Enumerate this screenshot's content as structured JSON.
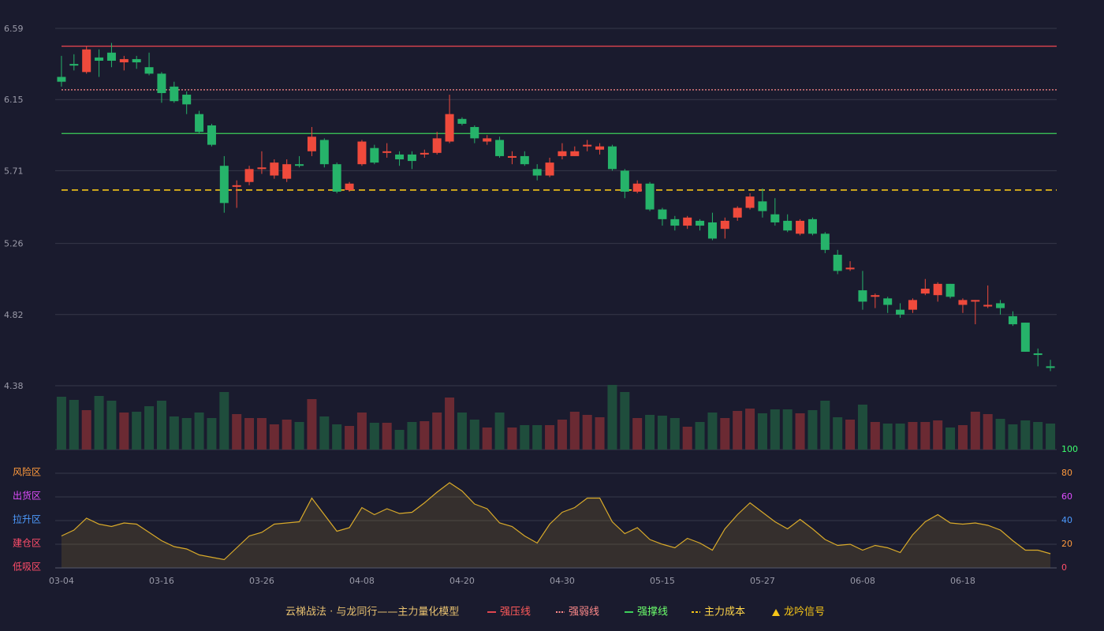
{
  "chart_data": {
    "type": "candlestick",
    "title": "云梯战法 · 与龙同行——主力量化模型",
    "categories": [
      "03-04",
      null,
      null,
      null,
      null,
      null,
      null,
      null,
      "03-16",
      null,
      null,
      null,
      null,
      null,
      null,
      null,
      "03-26",
      null,
      null,
      null,
      null,
      null,
      null,
      null,
      "04-08",
      null,
      null,
      null,
      null,
      null,
      null,
      null,
      "04-20",
      null,
      null,
      null,
      null,
      null,
      null,
      null,
      "04-30",
      null,
      null,
      null,
      null,
      null,
      null,
      null,
      "05-15",
      null,
      null,
      null,
      null,
      null,
      null,
      null,
      "05-27",
      null,
      null,
      null,
      null,
      null,
      null,
      null,
      "06-08",
      null,
      null,
      null,
      null,
      null,
      null,
      null,
      "06-18",
      null,
      null,
      null,
      null,
      null,
      null,
      null
    ],
    "open": [
      6.29,
      6.37,
      6.32,
      6.41,
      6.44,
      6.38,
      6.4,
      6.35,
      6.31,
      6.23,
      6.18,
      6.06,
      5.99,
      5.74,
      5.61,
      5.64,
      5.72,
      5.68,
      5.66,
      5.75,
      5.83,
      5.9,
      5.75,
      5.59,
      5.75,
      5.85,
      5.82,
      5.81,
      5.81,
      5.81,
      5.82,
      5.89,
      6.03,
      5.98,
      5.89,
      5.9,
      5.79,
      5.8,
      5.72,
      5.68,
      5.8,
      5.8,
      5.86,
      5.84,
      5.86,
      5.71,
      5.58,
      5.63,
      5.47,
      5.41,
      5.37,
      5.4,
      5.39,
      5.35,
      5.42,
      5.48,
      5.52,
      5.44,
      5.4,
      5.32,
      5.41,
      5.32,
      5.19,
      5.1,
      4.97,
      4.93,
      4.92,
      4.85,
      4.85,
      4.95,
      4.94,
      5.01,
      4.88,
      4.9,
      4.87,
      4.89,
      4.81,
      4.77,
      4.58,
      4.5
    ],
    "high": [
      6.42,
      6.43,
      6.48,
      6.46,
      6.5,
      6.42,
      6.42,
      6.44,
      6.32,
      6.26,
      6.2,
      6.08,
      6.0,
      5.8,
      5.65,
      5.74,
      5.83,
      5.78,
      5.78,
      5.8,
      5.98,
      5.91,
      5.76,
      5.64,
      5.9,
      5.87,
      5.88,
      5.83,
      5.83,
      5.84,
      5.95,
      6.18,
      6.04,
      5.99,
      5.93,
      5.92,
      5.83,
      5.83,
      5.75,
      5.79,
      5.88,
      5.86,
      5.9,
      5.88,
      5.87,
      5.72,
      5.65,
      5.64,
      5.48,
      5.43,
      5.43,
      5.41,
      5.45,
      5.42,
      5.49,
      5.57,
      5.6,
      5.54,
      5.44,
      5.41,
      5.42,
      5.33,
      5.22,
      5.15,
      5.09,
      4.95,
      4.93,
      4.89,
      4.92,
      5.04,
      5.02,
      5.01,
      4.92,
      4.91,
      5.0,
      4.91,
      4.84,
      4.77,
      4.61,
      4.54
    ],
    "low": [
      6.23,
      6.33,
      6.31,
      6.29,
      6.35,
      6.33,
      6.34,
      6.3,
      6.13,
      6.13,
      6.06,
      5.94,
      5.86,
      5.45,
      5.48,
      5.62,
      5.69,
      5.66,
      5.64,
      5.73,
      5.8,
      5.73,
      5.57,
      5.58,
      5.74,
      5.75,
      5.79,
      5.74,
      5.72,
      5.79,
      5.81,
      5.88,
      5.99,
      5.88,
      5.87,
      5.79,
      5.75,
      5.74,
      5.65,
      5.67,
      5.78,
      5.8,
      5.83,
      5.81,
      5.71,
      5.54,
      5.57,
      5.46,
      5.37,
      5.34,
      5.35,
      5.34,
      5.28,
      5.29,
      5.4,
      5.47,
      5.42,
      5.37,
      5.33,
      5.31,
      5.31,
      5.2,
      5.07,
      5.09,
      4.85,
      4.86,
      4.83,
      4.8,
      4.83,
      4.94,
      4.9,
      4.92,
      4.83,
      4.76,
      4.86,
      4.82,
      4.75,
      4.59,
      4.5,
      4.47
    ],
    "close": [
      6.26,
      6.36,
      6.46,
      6.39,
      6.39,
      6.4,
      6.38,
      6.31,
      6.19,
      6.14,
      6.12,
      5.95,
      5.87,
      5.51,
      5.62,
      5.72,
      5.73,
      5.76,
      5.75,
      5.74,
      5.92,
      5.75,
      5.58,
      5.63,
      5.89,
      5.76,
      5.83,
      5.78,
      5.77,
      5.82,
      5.91,
      6.06,
      6.0,
      5.91,
      5.91,
      5.8,
      5.8,
      5.75,
      5.68,
      5.76,
      5.83,
      5.83,
      5.87,
      5.86,
      5.72,
      5.58,
      5.63,
      5.47,
      5.41,
      5.37,
      5.42,
      5.37,
      5.29,
      5.4,
      5.48,
      5.55,
      5.46,
      5.39,
      5.34,
      5.4,
      5.32,
      5.22,
      5.09,
      5.11,
      4.9,
      4.94,
      4.88,
      4.82,
      4.91,
      4.98,
      5.01,
      4.93,
      4.91,
      4.91,
      4.88,
      4.86,
      4.76,
      4.59,
      4.57,
      4.49
    ],
    "volume": [
      67,
      63,
      50,
      68,
      62,
      47,
      48,
      55,
      62,
      42,
      40,
      47,
      40,
      73,
      45,
      40,
      40,
      32,
      38,
      35,
      64,
      42,
      32,
      30,
      47,
      34,
      34,
      25,
      35,
      36,
      47,
      66,
      47,
      38,
      28,
      47,
      28,
      31,
      31,
      31,
      38,
      48,
      44,
      41,
      82,
      73,
      40,
      44,
      43,
      40,
      29,
      35,
      47,
      40,
      49,
      52,
      46,
      51,
      51,
      46,
      50,
      62,
      41,
      38,
      57,
      35,
      33,
      33,
      35,
      35,
      37,
      28,
      31,
      48,
      45,
      39,
      32,
      37,
      35,
      33
    ],
    "oscillator": [
      27,
      32,
      42,
      37,
      35,
      38,
      37,
      30,
      23,
      18,
      16,
      11,
      9,
      7,
      17,
      27,
      30,
      37,
      38,
      39,
      59,
      45,
      31,
      34,
      51,
      45,
      50,
      46,
      47,
      55,
      64,
      72,
      65,
      54,
      50,
      38,
      35,
      27,
      21,
      37,
      47,
      51,
      59,
      59,
      39,
      29,
      34,
      24,
      20,
      17,
      25,
      21,
      15,
      33,
      45,
      55,
      47,
      39,
      33,
      41,
      33,
      24,
      19,
      20,
      15,
      19,
      17,
      13,
      28,
      39,
      45,
      38,
      37,
      38,
      36,
      32,
      23,
      15,
      15,
      12
    ],
    "ylim": [
      4.38,
      6.59
    ],
    "yticks": [
      4.38,
      4.82,
      5.26,
      5.71,
      6.15,
      6.59
    ],
    "osc_ylim": [
      0,
      100
    ],
    "osc_yticks": [
      {
        "value": 0,
        "color": "#ff4d6a"
      },
      {
        "value": 20,
        "color": "#ff9a3c"
      },
      {
        "value": 40,
        "color": "#4d9bff"
      },
      {
        "value": 60,
        "color": "#e04dff"
      },
      {
        "value": 80,
        "color": "#ff9a3c"
      },
      {
        "value": 100,
        "color": "#3cff6e"
      }
    ],
    "zones": [
      {
        "value": 80,
        "label": "风险区",
        "color": "#ff9a3c"
      },
      {
        "value": 60,
        "label": "出货区",
        "color": "#e04dff"
      },
      {
        "value": 40,
        "label": "拉升区",
        "color": "#4d9bff"
      },
      {
        "value": 20,
        "label": "建仓区",
        "color": "#ff4d6a"
      },
      {
        "value": 0,
        "label": "低吸区",
        "color": "#ff4d6a"
      }
    ],
    "levels": [
      {
        "name": "强压线",
        "value": 6.48,
        "color": "#e0454f",
        "style": "solid",
        "text_color": "#ff5a5a"
      },
      {
        "name": "强弱线",
        "value": 6.21,
        "color": "#ff8a8a",
        "style": "dotted",
        "text_color": "#ff8a8a"
      },
      {
        "name": "强撑线",
        "value": 5.94,
        "color": "#3ccf5a",
        "style": "solid",
        "text_color": "#6cff6c"
      },
      {
        "name": "主力成本",
        "value": 5.59,
        "color": "#f5c518",
        "style": "dashed",
        "text_color": "#ffd54a"
      }
    ],
    "signal": {
      "name": "龙吟信号",
      "color": "#f5c518"
    },
    "up_color": "#ef4a3c",
    "down_color": "#26b36a",
    "up_volume_color": "#6b2a33",
    "down_volume_color": "#1f4d3c",
    "oscillator_color": "#d9aa2a",
    "grid": true
  }
}
